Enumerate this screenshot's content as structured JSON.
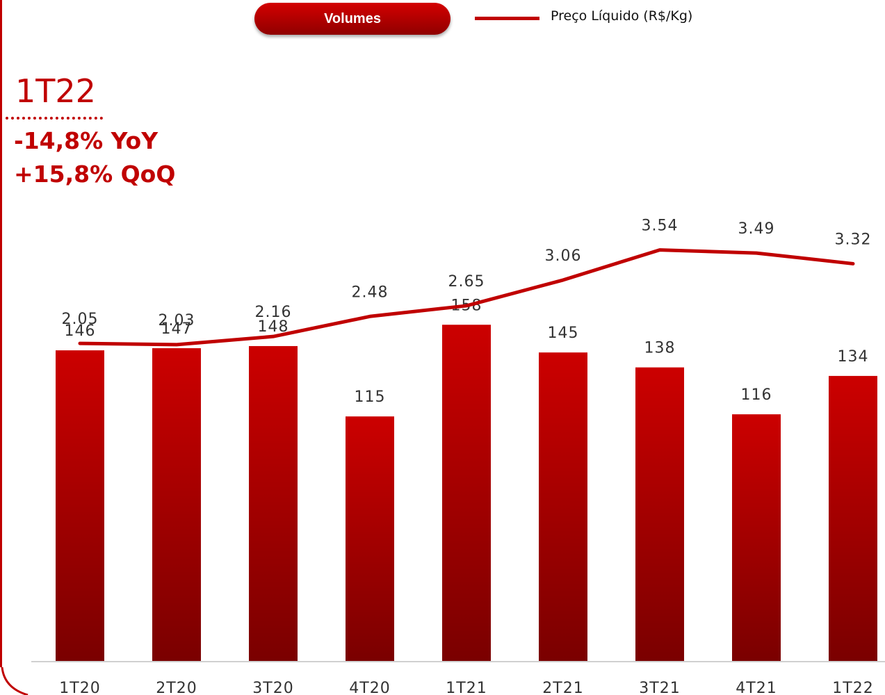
{
  "legend": {
    "bar_series_label": "Volumes",
    "line_series_label": "Preço Líquido (R$/Kg)"
  },
  "highlight": {
    "period": "1T22",
    "yoy": "-14,8% YoY",
    "qoq": "+15,8% QoQ"
  },
  "colors": {
    "accent": "#c00000",
    "bar_top": "#cc0000",
    "bar_bottom": "#7a0000",
    "text": "#333333"
  },
  "chart_data": {
    "type": "bar",
    "categories": [
      "1T20",
      "2T20",
      "3T20",
      "4T20",
      "1T21",
      "2T21",
      "3T21",
      "4T21",
      "1T22"
    ],
    "series": [
      {
        "name": "Volumes",
        "type": "bar",
        "values": [
          146,
          147,
          148,
          115,
          158,
          145,
          138,
          116,
          134
        ]
      },
      {
        "name": "Preço Líquido (R$/Kg)",
        "type": "line",
        "values": [
          2.05,
          2.03,
          2.16,
          2.48,
          2.65,
          3.06,
          3.54,
          3.49,
          3.32
        ]
      }
    ],
    "bar_ylim": [
      0,
      162
    ],
    "line_ylim": [
      0.6,
      4.2
    ],
    "grid": false,
    "legend_position": "top-center"
  }
}
